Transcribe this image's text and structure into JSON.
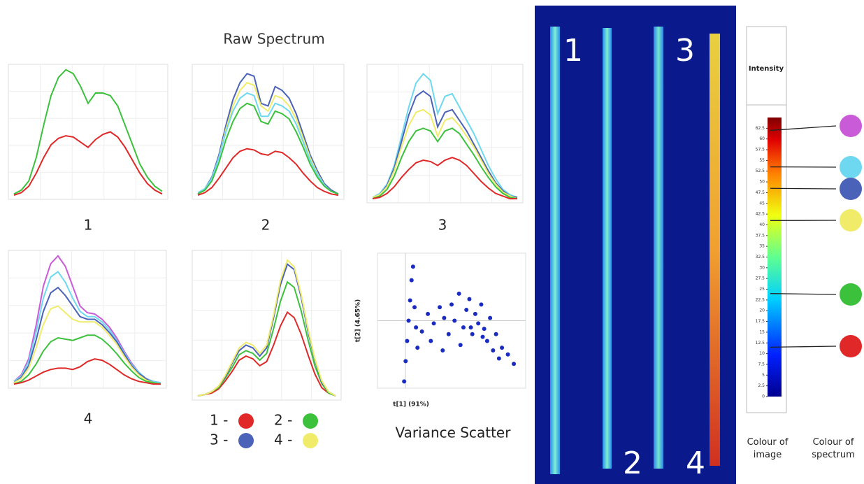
{
  "title": "Raw Spectrum",
  "image": {
    "labels": [
      "1",
      "3",
      "2",
      "4"
    ]
  },
  "chart_data": [
    {
      "type": "line",
      "title": "1",
      "ylim": [
        0,
        100
      ],
      "series": [
        {
          "color": "#3cc13c",
          "values": [
            2,
            5,
            12,
            30,
            55,
            78,
            92,
            98,
            95,
            85,
            72,
            80,
            80,
            78,
            70,
            55,
            40,
            25,
            15,
            8,
            4
          ]
        },
        {
          "color": "#e02828",
          "values": [
            1,
            3,
            8,
            18,
            30,
            40,
            45,
            47,
            46,
            42,
            38,
            44,
            48,
            50,
            46,
            38,
            28,
            18,
            10,
            5,
            2
          ]
        }
      ]
    },
    {
      "type": "line",
      "title": "2",
      "ylim": [
        0,
        100
      ],
      "series": [
        {
          "color": "#4a62b8",
          "values": [
            2,
            6,
            15,
            32,
            55,
            75,
            88,
            95,
            93,
            72,
            70,
            85,
            82,
            76,
            64,
            48,
            32,
            20,
            10,
            5,
            2
          ]
        },
        {
          "color": "#f0ec6a",
          "values": [
            2,
            5,
            14,
            30,
            52,
            70,
            82,
            88,
            86,
            70,
            66,
            78,
            76,
            70,
            60,
            45,
            30,
            18,
            9,
            4,
            2
          ]
        },
        {
          "color": "#6ed8f0",
          "values": [
            3,
            6,
            14,
            30,
            50,
            66,
            76,
            80,
            78,
            62,
            62,
            72,
            70,
            66,
            56,
            42,
            28,
            17,
            9,
            4,
            2
          ]
        },
        {
          "color": "#3cc13c",
          "values": [
            2,
            5,
            12,
            26,
            44,
            58,
            68,
            72,
            70,
            58,
            56,
            66,
            64,
            60,
            50,
            38,
            25,
            15,
            8,
            4,
            2
          ]
        },
        {
          "color": "#e02828",
          "values": [
            1,
            3,
            7,
            14,
            22,
            30,
            35,
            37,
            36,
            33,
            32,
            35,
            34,
            30,
            25,
            18,
            12,
            7,
            4,
            2,
            1
          ]
        }
      ]
    },
    {
      "type": "line",
      "title": "3",
      "ylim": [
        0,
        100
      ],
      "series": [
        {
          "color": "#6ed8f0",
          "values": [
            2,
            5,
            12,
            26,
            48,
            70,
            88,
            95,
            90,
            65,
            78,
            80,
            70,
            60,
            50,
            38,
            26,
            16,
            8,
            4,
            2
          ]
        },
        {
          "color": "#4a62b8",
          "values": [
            2,
            4,
            11,
            24,
            44,
            64,
            78,
            82,
            78,
            55,
            66,
            68,
            60,
            52,
            42,
            32,
            22,
            13,
            7,
            3,
            2
          ]
        },
        {
          "color": "#f0ec6a",
          "values": [
            2,
            4,
            10,
            22,
            40,
            56,
            66,
            68,
            64,
            48,
            60,
            62,
            56,
            48,
            40,
            30,
            20,
            12,
            6,
            3,
            1
          ]
        },
        {
          "color": "#3cc13c",
          "values": [
            1,
            3,
            8,
            18,
            32,
            44,
            52,
            54,
            52,
            44,
            52,
            54,
            50,
            42,
            34,
            25,
            17,
            10,
            5,
            2,
            1
          ]
        },
        {
          "color": "#e02828",
          "values": [
            1,
            2,
            5,
            10,
            17,
            23,
            28,
            30,
            29,
            26,
            30,
            32,
            30,
            26,
            20,
            14,
            9,
            5,
            3,
            1,
            1
          ]
        }
      ]
    },
    {
      "type": "line",
      "title": "4",
      "ylim": [
        0,
        100
      ],
      "series": [
        {
          "color": "#c95ad8",
          "values": [
            3,
            8,
            20,
            45,
            75,
            92,
            98,
            90,
            75,
            60,
            55,
            54,
            50,
            44,
            36,
            26,
            17,
            10,
            5,
            3,
            2
          ]
        },
        {
          "color": "#6ed8f0",
          "values": [
            3,
            7,
            18,
            40,
            66,
            82,
            86,
            78,
            66,
            56,
            52,
            52,
            48,
            42,
            34,
            25,
            16,
            10,
            5,
            3,
            2
          ]
        },
        {
          "color": "#4a62b8",
          "values": [
            2,
            6,
            15,
            34,
            56,
            70,
            74,
            68,
            60,
            52,
            50,
            50,
            46,
            40,
            33,
            24,
            15,
            9,
            5,
            2,
            1
          ]
        },
        {
          "color": "#f0ec6a",
          "values": [
            2,
            5,
            13,
            28,
            46,
            58,
            60,
            55,
            50,
            48,
            48,
            48,
            44,
            38,
            31,
            22,
            14,
            8,
            4,
            2,
            1
          ]
        },
        {
          "color": "#3cc13c",
          "values": [
            1,
            3,
            8,
            16,
            26,
            33,
            36,
            35,
            34,
            36,
            38,
            38,
            35,
            30,
            24,
            17,
            11,
            6,
            3,
            2,
            1
          ]
        },
        {
          "color": "#e02828",
          "values": [
            1,
            2,
            4,
            7,
            10,
            12,
            13,
            13,
            12,
            14,
            18,
            20,
            19,
            16,
            12,
            8,
            5,
            3,
            2,
            1,
            1
          ]
        }
      ]
    },
    {
      "type": "line",
      "ylim": [
        0,
        105
      ],
      "series": [
        {
          "name": "1 -",
          "color": "#e02828",
          "values": [
            1,
            2,
            3,
            6,
            12,
            19,
            27,
            30,
            28,
            23,
            26,
            38,
            52,
            62,
            58,
            46,
            31,
            17,
            7,
            3,
            1
          ]
        },
        {
          "name": "2 -",
          "color": "#3cc13c",
          "values": [
            1,
            2,
            4,
            7,
            14,
            22,
            31,
            34,
            32,
            27,
            32,
            50,
            70,
            84,
            80,
            63,
            42,
            23,
            10,
            3,
            1
          ]
        },
        {
          "name": "3 -",
          "color": "#4a62b8",
          "values": [
            1,
            2,
            4,
            8,
            15,
            25,
            34,
            38,
            36,
            30,
            36,
            58,
            82,
            97,
            93,
            73,
            48,
            27,
            11,
            4,
            1
          ]
        },
        {
          "name": "4 -",
          "color": "#f0ec6a",
          "values": [
            1,
            2,
            4,
            8,
            16,
            26,
            36,
            40,
            38,
            32,
            38,
            60,
            85,
            100,
            95,
            75,
            50,
            28,
            12,
            4,
            1
          ]
        }
      ]
    },
    {
      "type": "scatter",
      "title": "Variance Scatter",
      "x_label": "t[1] (91%)",
      "y_label": "t[2] (4.65%)",
      "xlim": [
        0,
        100
      ],
      "ylim": [
        0,
        100
      ],
      "color": "#1a2bc0",
      "x": [
        18,
        19,
        20,
        21,
        22,
        23,
        24,
        25,
        26,
        27,
        30,
        34,
        38,
        42,
        45,
        48,
        50,
        52,
        55,
        58,
        60,
        62,
        64,
        66,
        68,
        70,
        72,
        74,
        76,
        78,
        80,
        84,
        88,
        92,
        36,
        44,
        56,
        63,
        71,
        82
      ],
      "y": [
        5,
        20,
        35,
        50,
        65,
        80,
        90,
        60,
        45,
        30,
        42,
        55,
        48,
        60,
        52,
        40,
        62,
        50,
        70,
        45,
        58,
        66,
        40,
        55,
        48,
        62,
        44,
        35,
        52,
        28,
        40,
        30,
        25,
        18,
        35,
        28,
        32,
        45,
        38,
        22
      ]
    },
    {
      "type": "colorbar",
      "title": "Intensity",
      "ylim": [
        0,
        65
      ],
      "yticks": [
        0,
        2.5,
        5,
        7.5,
        10,
        12.5,
        15,
        17.5,
        20,
        22.5,
        25,
        27.5,
        30,
        32.5,
        35,
        37.5,
        40,
        42.5,
        45,
        47.5,
        50,
        52.5,
        55,
        57.5,
        60,
        62.5
      ],
      "marker_values": [
        62,
        53.5,
        48.5,
        41,
        24,
        11.5
      ],
      "marker_colors": [
        "#c95ad8",
        "#6ed8f0",
        "#4a62b8",
        "#f0ec6a",
        "#3cc13c",
        "#e02828"
      ],
      "labels": [
        "Colour of image",
        "Colour of spectrum"
      ]
    }
  ]
}
